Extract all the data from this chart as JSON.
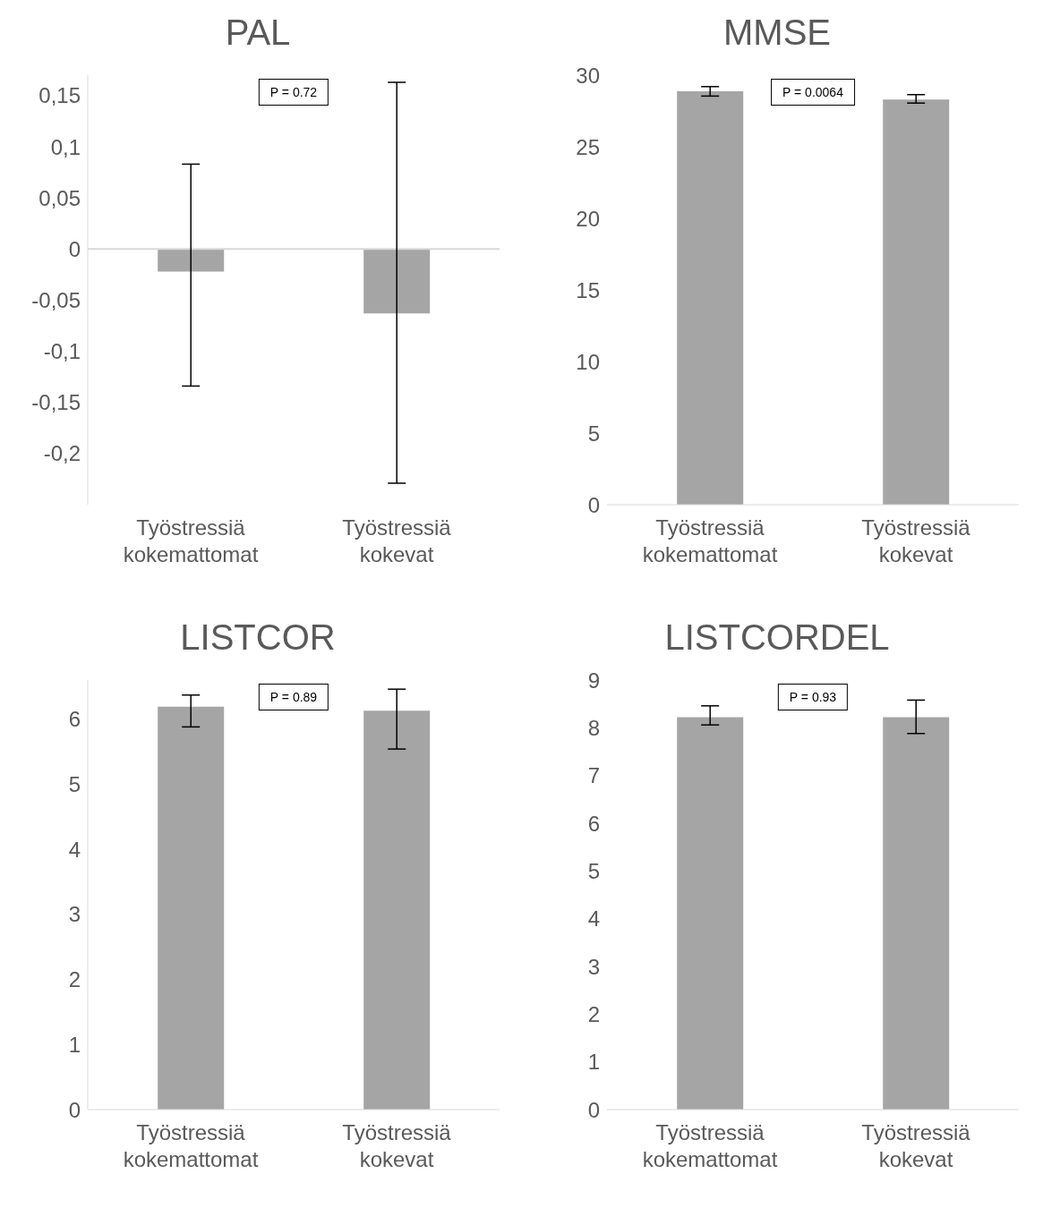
{
  "chart_data": [
    {
      "type": "bar",
      "title": "PAL",
      "categories": [
        "Työstressiä kokemattomat",
        "Työstressiä kokevat"
      ],
      "values": [
        -0.022,
        -0.063
      ],
      "errors": [
        [
          -0.134,
          0.083
        ],
        [
          -0.229,
          0.163
        ]
      ],
      "color": "#a5a5a5",
      "ylim": [
        -0.25,
        0.17
      ],
      "yticks": [
        {
          "value": -0.2,
          "label": "-0,2"
        },
        {
          "value": -0.15,
          "label": "-0,15"
        },
        {
          "value": -0.1,
          "label": "-0,1"
        },
        {
          "value": -0.05,
          "label": "-0,05"
        },
        0,
        {
          "value": 0.05,
          "label": "0,05"
        },
        {
          "value": 0.1,
          "label": "0,1"
        },
        {
          "value": 0.15,
          "label": "0,15"
        }
      ],
      "annotations": [
        "P = 0.72"
      ],
      "grid": false,
      "legend": false
    },
    {
      "type": "bar",
      "title": "MMSE",
      "categories": [
        "Työstressiä kokemattomat",
        "Työstressiä kokevat"
      ],
      "values": [
        28.88,
        28.29
      ],
      "errors": [
        [
          28.54,
          29.2
        ],
        [
          28.05,
          28.64
        ]
      ],
      "color": "#a5a5a5",
      "ylim": [
        0,
        30
      ],
      "yticks": [
        0,
        5,
        10,
        15,
        20,
        25,
        30
      ],
      "annotations": [
        "P = 0.0064"
      ],
      "grid": false,
      "legend": false
    },
    {
      "type": "bar",
      "title": "LISTCOR",
      "categories": [
        "Työstressiä kokemattomat",
        "Työstressiä kokevat"
      ],
      "values": [
        6.19,
        6.13
      ],
      "errors": [
        [
          5.88,
          6.37
        ],
        [
          5.54,
          6.46
        ]
      ],
      "color": "#a5a5a5",
      "ylim": [
        0,
        6.6
      ],
      "yticks": [
        0,
        1,
        2,
        3,
        4,
        5,
        6
      ],
      "annotations": [
        "P = 0.89"
      ],
      "grid": false,
      "legend": false
    },
    {
      "type": "bar",
      "title": "LISTCORDEL",
      "categories": [
        "Työstressiä kokemattomat",
        "Työstressiä kokevat"
      ],
      "values": [
        8.22,
        8.22
      ],
      "errors": [
        [
          8.06,
          8.46
        ],
        [
          7.88,
          8.58
        ]
      ],
      "color": "#a5a5a5",
      "ylim": [
        0,
        9
      ],
      "yticks": [
        0,
        1,
        2,
        3,
        4,
        5,
        6,
        7,
        8,
        9
      ],
      "annotations": [
        "P = 0.93"
      ],
      "grid": false,
      "legend": false
    }
  ]
}
